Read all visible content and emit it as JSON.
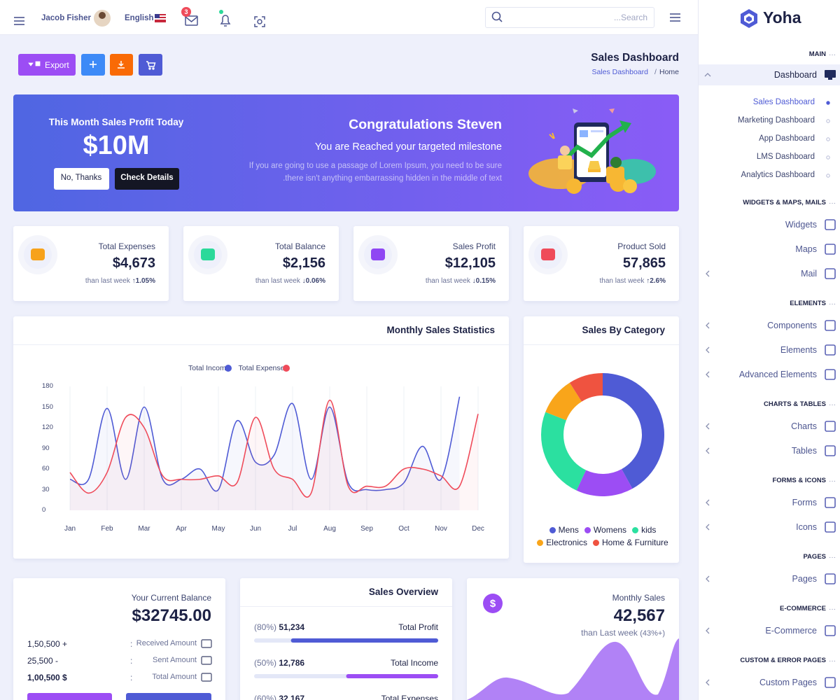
{
  "header": {
    "user": "Jacob Fisher",
    "language": "English",
    "mail_count": "3",
    "search_placeholder": "...Search"
  },
  "sidebar": {
    "logo": "Yoha",
    "sections": [
      {
        "title": "MAIN",
        "items": [
          {
            "label": "Dashboard",
            "children": [
              "Sales Dashboard",
              "Marketing Dashboard",
              "App Dashboard",
              "LMS Dashboard",
              "Analytics Dashboard"
            ],
            "active_child": 0
          }
        ]
      },
      {
        "title": "WIDGETS & MAPS, MAILS",
        "items": [
          {
            "label": "Widgets"
          },
          {
            "label": "Maps"
          },
          {
            "label": "Mail",
            "expandable": true
          }
        ]
      },
      {
        "title": "ELEMENTS",
        "items": [
          {
            "label": "Components",
            "expandable": true
          },
          {
            "label": "Elements",
            "expandable": true
          },
          {
            "label": "Advanced Elements",
            "expandable": true
          }
        ]
      },
      {
        "title": "CHARTS & TABLES",
        "items": [
          {
            "label": "Charts",
            "expandable": true
          },
          {
            "label": "Tables",
            "expandable": true
          }
        ]
      },
      {
        "title": "FORMS & ICONS",
        "items": [
          {
            "label": "Forms",
            "expandable": true
          },
          {
            "label": "Icons",
            "expandable": true
          }
        ]
      },
      {
        "title": "PAGES",
        "items": [
          {
            "label": "Pages",
            "expandable": true
          }
        ]
      },
      {
        "title": "E-COMMERCE",
        "items": [
          {
            "label": "E-Commerce",
            "expandable": true
          }
        ]
      },
      {
        "title": "CUSTOM & ERROR PAGES",
        "items": [
          {
            "label": "Custom Pages",
            "expandable": true
          }
        ]
      }
    ]
  },
  "page": {
    "title": "Sales Dashboard",
    "breadcrumb": [
      "Sales Dashboard",
      "Home"
    ],
    "export": "Export"
  },
  "banner": {
    "profit_label": "This Month Sales Profit Today",
    "profit": "$10M",
    "buttons": [
      "No, Thanks",
      "Check Details"
    ],
    "heading": "Congratulations Steven",
    "subheading": "You are Reached your targeted milestone",
    "text_lines": [
      "If you are going to use a passage of Lorem Ipsum, you need to be sure",
      ".there isn't anything embarrassing hidden in the middle of text"
    ]
  },
  "stats": [
    {
      "label": "Total Expenses",
      "value": "$4,673",
      "note": "than last week",
      "change": "↑1.05%",
      "color": "#f7a21b"
    },
    {
      "label": "Total Balance",
      "value": "$2,156",
      "note": "than last week",
      "change": "↓0.06%",
      "color": "#2bd99a"
    },
    {
      "label": "Sales Profit",
      "value": "$12,105",
      "note": "than last week",
      "change": "↓0.15%",
      "color": "#8f47f3"
    },
    {
      "label": "Product Sold",
      "value": "57,865",
      "note": "than last week",
      "change": "↑2.6%",
      "color": "#ef4b5a"
    }
  ],
  "monthly_sales_statistics": {
    "type": "line",
    "title": "Monthly Sales Statistics",
    "categories": [
      "Jan",
      null,
      "Feb",
      null,
      "Mar",
      null,
      "Apr",
      null,
      "May",
      null,
      "Jun",
      null,
      "Jul",
      null,
      "Aug",
      null,
      "Sep",
      null,
      "Oct",
      null,
      "Nov",
      null,
      "Dec"
    ],
    "ylim": [
      0,
      180
    ],
    "yticks": [
      0,
      30,
      60,
      90,
      120,
      150,
      180
    ],
    "xgrid": true,
    "series": [
      {
        "name": "Total Income",
        "color": "#4f5bd5",
        "values": [
          45,
          45,
          148,
          45,
          150,
          45,
          45,
          60,
          30,
          130,
          70,
          80,
          155,
          45,
          150,
          40,
          30,
          30,
          40,
          93,
          45,
          165,
          null
        ]
      },
      {
        "name": "Total Expenses",
        "color": "#ef4b5a",
        "values": [
          55,
          25,
          55,
          135,
          120,
          50,
          45,
          45,
          50,
          40,
          135,
          60,
          45,
          25,
          160,
          35,
          35,
          35,
          60,
          60,
          50,
          35,
          140
        ]
      }
    ]
  },
  "sales_by_category": {
    "type": "pie",
    "title": "Sales By Category",
    "categories": [
      "Mens",
      "Womens",
      "kids",
      "Electronics",
      "Home & Furniture"
    ],
    "values": [
      42,
      15,
      24,
      10,
      9
    ],
    "colors": [
      "#4f5bd5",
      "#9c4df4",
      "#2be0a0",
      "#f9a51a",
      "#ef5340"
    ]
  },
  "balance": {
    "title": "Your Current Balance",
    "value": "$32745.00",
    "rows": [
      {
        "amount": "1,50,500 +",
        "label": "Received Amount"
      },
      {
        "amount": "25,500 -",
        "label": "Sent Amount"
      },
      {
        "amount": "1,00,500 $",
        "label": "Total Amount"
      }
    ]
  },
  "sales_overview": {
    "title": "Sales Overview",
    "items": [
      {
        "label": "Total Profit",
        "percent": 80,
        "percent_label": "(80%)",
        "value": "51,234",
        "color": "#4f5bd5"
      },
      {
        "label": "Total Income",
        "percent": 50,
        "percent_label": "(50%)",
        "value": "12,786",
        "color": "#9c4df4"
      },
      {
        "label": "Total Expenses",
        "percent": 60,
        "percent_label": "(60%)",
        "value": "32,167",
        "color": "#f96a05"
      }
    ]
  },
  "monthly_sales": {
    "title": "Monthly Sales",
    "value": "42,567",
    "note": "than Last week",
    "change": "(43%+)"
  }
}
